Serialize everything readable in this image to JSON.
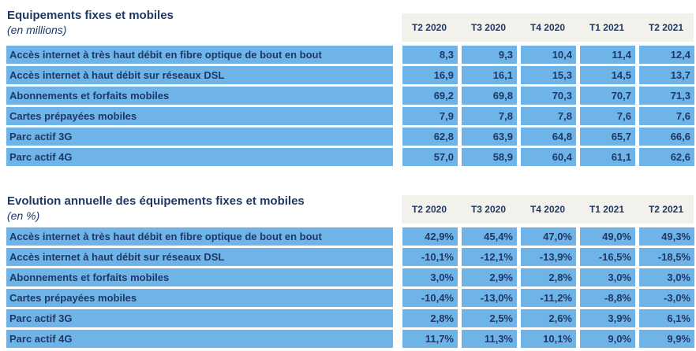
{
  "colors": {
    "cell_blue": "#6EB4E8",
    "header_gray": "#F2F1EC",
    "text_navy": "#1F3864",
    "separator_white": "#FFFFFF"
  },
  "tables": [
    {
      "title": "Equipements fixes et mobiles",
      "unit": "(en millions)",
      "columns": [
        "T2 2020",
        "T3 2020",
        "T4 2020",
        "T1 2021",
        "T2 2021"
      ],
      "rows": [
        {
          "label": "Accès internet à très haut débit en fibre optique de bout en bout",
          "values": [
            "8,3",
            "9,3",
            "10,4",
            "11,4",
            "12,4"
          ]
        },
        {
          "label": "Accès internet à haut débit sur réseaux DSL",
          "values": [
            "16,9",
            "16,1",
            "15,3",
            "14,5",
            "13,7"
          ]
        },
        {
          "label": "Abonnements et forfaits mobiles",
          "values": [
            "69,2",
            "69,8",
            "70,3",
            "70,7",
            "71,3"
          ]
        },
        {
          "label": "Cartes prépayées mobiles",
          "values": [
            "7,9",
            "7,8",
            "7,8",
            "7,6",
            "7,6"
          ]
        },
        {
          "label": "Parc actif 3G",
          "values": [
            "62,8",
            "63,9",
            "64,8",
            "65,7",
            "66,6"
          ]
        },
        {
          "label": "Parc actif 4G",
          "values": [
            "57,0",
            "58,9",
            "60,4",
            "61,1",
            "62,6"
          ]
        }
      ]
    },
    {
      "title": "Evolution annuelle des équipements fixes et mobiles",
      "unit": "(en %)",
      "columns": [
        "T2 2020",
        "T3 2020",
        "T4 2020",
        "T1 2021",
        "T2 2021"
      ],
      "rows": [
        {
          "label": "Accès internet à très haut débit en fibre optique de bout en bout",
          "values": [
            "42,9%",
            "45,4%",
            "47,0%",
            "49,0%",
            "49,3%"
          ]
        },
        {
          "label": "Accès internet à haut débit sur réseaux DSL",
          "values": [
            "-10,1%",
            "-12,1%",
            "-13,9%",
            "-16,5%",
            "-18,5%"
          ]
        },
        {
          "label": "Abonnements et forfaits mobiles",
          "values": [
            "3,0%",
            "2,9%",
            "2,8%",
            "3,0%",
            "3,0%"
          ]
        },
        {
          "label": "Cartes prépayées mobiles",
          "values": [
            "-10,4%",
            "-13,0%",
            "-11,2%",
            "-8,8%",
            "-3,0%"
          ]
        },
        {
          "label": "Parc actif 3G",
          "values": [
            "2,8%",
            "2,5%",
            "2,6%",
            "3,9%",
            "6,1%"
          ]
        },
        {
          "label": "Parc actif 4G",
          "values": [
            "11,7%",
            "11,3%",
            "10,1%",
            "9,0%",
            "9,9%"
          ]
        }
      ]
    }
  ]
}
